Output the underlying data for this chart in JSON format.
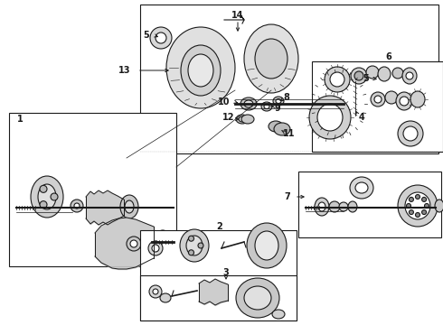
{
  "bg_color": "#ffffff",
  "line_color": "#1a1a1a",
  "gray_light": "#c8c8c8",
  "gray_mid": "#aaaaaa",
  "gray_dark": "#888888"
}
